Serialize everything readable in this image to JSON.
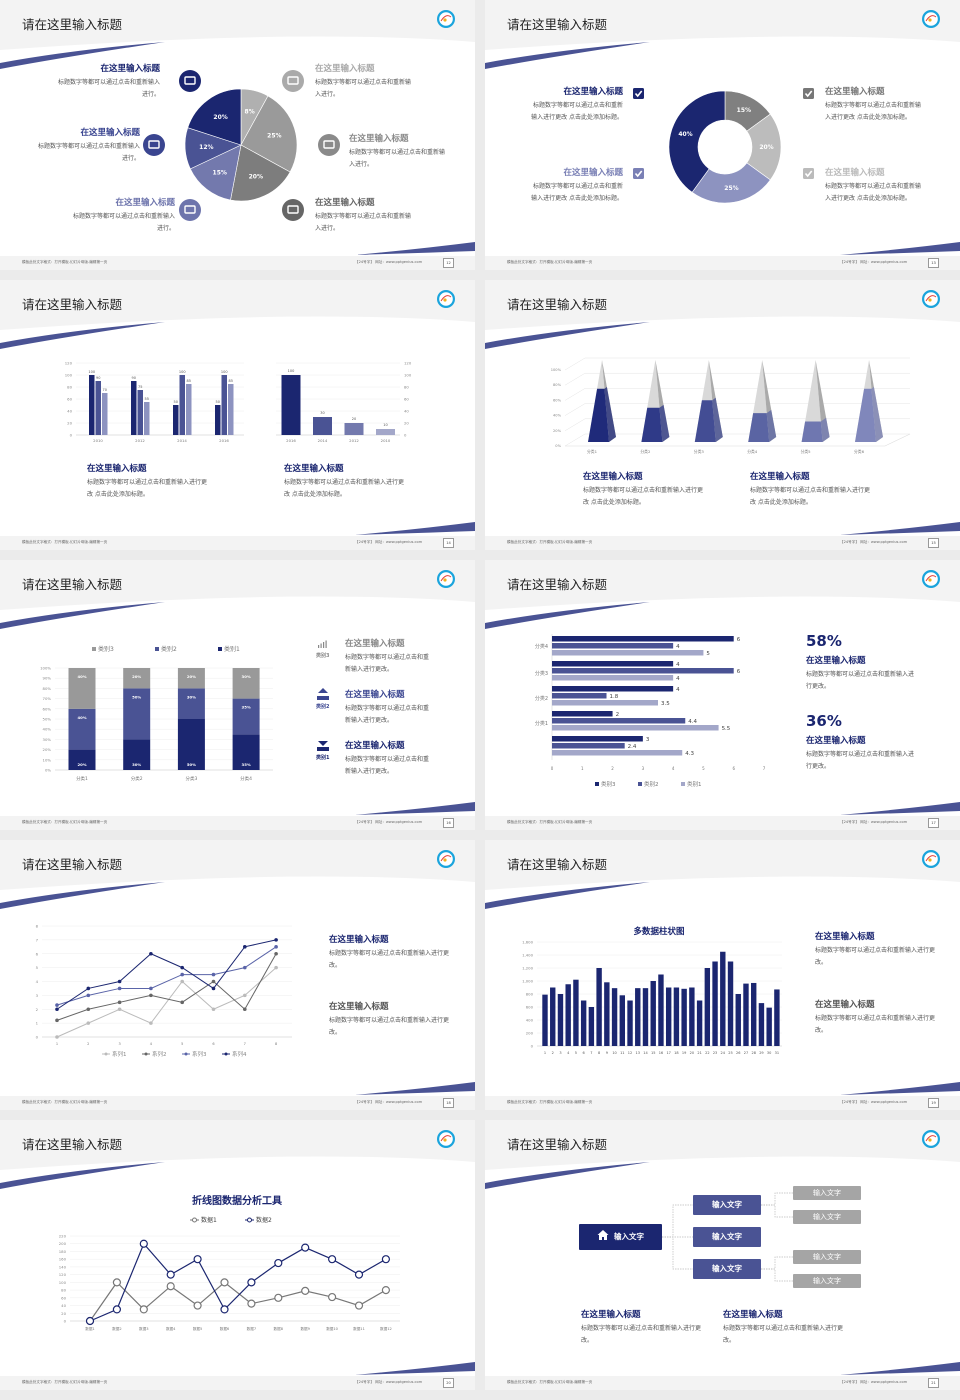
{
  "footer": {
    "left": "模板此处文字格式：打开模板-幻灯片母版-编辑第一页",
    "right": "【24号字】  网址：www.pptgenius.com"
  },
  "slides": [
    {
      "title": "请在这里输入标题",
      "page": "12"
    },
    {
      "title": "请在这里输入标题",
      "page": "13"
    },
    {
      "title": "请在这里输入标题",
      "page": "14"
    },
    {
      "title": "请在这里输入标题",
      "page": "15"
    },
    {
      "title": "请在这里输入标题",
      "page": "16"
    },
    {
      "title": "请在这里输入标题",
      "page": "17"
    },
    {
      "title": "请在这里输入标题",
      "page": "18"
    },
    {
      "title": "请在这里输入标题",
      "page": "19"
    },
    {
      "title": "请在这里输入标题",
      "page": "20"
    },
    {
      "title": "请在这里输入标题",
      "page": "21"
    }
  ],
  "colors": {
    "navy": "#1b2670",
    "mid": "#4a5394",
    "light": "#8d93c0",
    "gray": "#808080"
  },
  "s1": {
    "items": [
      {
        "heading": "在这里输入标题",
        "body": "标题数字等都可以通过点击和重新输入进行。",
        "icon": "monitor-icon",
        "color": "#1b2670"
      },
      {
        "heading": "在这里输入标题",
        "body": "标题数字等都可以通过点击和重新输入进行。",
        "icon": "car-icon",
        "color": "#3a4590"
      },
      {
        "heading": "在这里输入标题",
        "body": "标题数字等都可以通过点击和重新输入进行。",
        "icon": "book-icon",
        "color": "#6d74ac"
      },
      {
        "heading": "在这里输入标题",
        "body": "标题数字等都可以通过点击和重新输入进行。",
        "icon": "phone-icon",
        "color": "#aaaaaa"
      },
      {
        "heading": "在这里输入标题",
        "body": "标题数字等都可以通过点击和重新输入进行。",
        "icon": "binoculars-icon",
        "color": "#8a8a8a"
      },
      {
        "heading": "在这里输入标题",
        "body": "标题数字等都可以通过点击和重新输入进行。",
        "icon": "bicycle-icon",
        "color": "#666666"
      }
    ]
  },
  "s2": {
    "items": [
      {
        "heading": "在这里输入标题",
        "body": "标题数字等都可以通过点击和重新输入进行更改 点击此处添加标题。",
        "color": "#1b2670"
      },
      {
        "heading": "在这里输入标题",
        "body": "标题数字等都可以通过点击和重新输入进行更改 点击此处添加标题。",
        "color": "#7a80b5"
      },
      {
        "heading": "在这里输入标题",
        "body": "标题数字等都可以通过点击和重新输入进行更改 点击此处添加标题。",
        "color": "#777777"
      },
      {
        "heading": "在这里输入标题",
        "body": "标题数字等都可以通过点击和重新输入进行更改 点击此处添加标题。",
        "color": "#bbbbbb"
      }
    ]
  },
  "s3": {
    "blocks": [
      {
        "heading": "在这里输入标题",
        "body": "标题数字等都可以通过点击和重新输入进行更改 点击此处添加标题。"
      },
      {
        "heading": "在这里输入标题",
        "body": "标题数字等都可以通过点击和重新输入进行更改 点击此处添加标题。"
      }
    ]
  },
  "s4": {
    "blocks": [
      {
        "heading": "在这里输入标题",
        "body": "标题数字等都可以通过点击和重新输入进行更改 点击此处添加标题。"
      },
      {
        "heading": "在这里输入标题",
        "body": "标题数字等都可以通过点击和重新输入进行更改 点击此处添加标题。"
      }
    ]
  },
  "s5": {
    "items": [
      {
        "icon_label": "类别3",
        "icon": "bar-chart-icon",
        "heading": "在这里输入标题",
        "body": "标题数字等都可以通过点击和重新输入进行更改。",
        "color": "#888888"
      },
      {
        "icon_label": "类别2",
        "icon": "upload-icon",
        "heading": "在这里输入标题",
        "body": "标题数字等都可以通过点击和重新输入进行更改。",
        "color": "#3a4590"
      },
      {
        "icon_label": "类别1",
        "icon": "download-icon",
        "heading": "在这里输入标题",
        "body": "标题数字等都可以通过点击和重新输入进行更改。",
        "color": "#1b2670"
      }
    ]
  },
  "s6": {
    "stats": [
      {
        "value": "58%",
        "heading": "在这里输入标题",
        "body": "标题数字等都可以通过点击和重新输入进行更改。"
      },
      {
        "value": "36%",
        "heading": "在这里输入标题",
        "body": "标题数字等都可以通过点击和重新输入进行更改。"
      }
    ]
  },
  "s7": {
    "blocks": [
      {
        "heading": "在这里输入标题",
        "body": "标题数字等都可以通过点击和重新输入进行更改。",
        "color": "#1b2670"
      },
      {
        "heading": "在这里输入标题",
        "body": "标题数字等都可以通过点击和重新输入进行更改。",
        "color": "#555555"
      }
    ]
  },
  "s8": {
    "blocks": [
      {
        "heading": "在这里输入标题",
        "body": "标题数字等都可以通过点击和重新输入进行更改。",
        "color": "#1b2670"
      },
      {
        "heading": "在这里输入标题",
        "body": "标题数字等都可以通过点击和重新输入进行更改。",
        "color": "#555555"
      }
    ]
  },
  "s10": {
    "root": "输入文字",
    "root_icon": "home-icon",
    "mid": [
      "输入文字",
      "输入文字",
      "输入文字"
    ],
    "leaves": [
      "输入文字",
      "输入文字",
      "输入文字",
      "输入文字"
    ],
    "blocks": [
      {
        "heading": "在这里输入标题",
        "body": "标题数字等都可以通过点击和重新输入进行更改。"
      },
      {
        "heading": "在这里输入标题",
        "body": "标题数字等都可以通过点击和重新输入进行更改。"
      }
    ]
  },
  "chart_data": [
    {
      "type": "pie",
      "labels": [
        "8%",
        "25%",
        "20%",
        "15%",
        "12%",
        "20%"
      ],
      "values": [
        8,
        25,
        20,
        15,
        12,
        20
      ],
      "colors": [
        "#b0b0b0",
        "#9a9a9a",
        "#7d7d7d",
        "#7379ad",
        "#4a5394",
        "#1b2670"
      ]
    },
    {
      "type": "pie",
      "donut": true,
      "labels": [
        "15%",
        "20%",
        "25%",
        "40%"
      ],
      "values": [
        15,
        20,
        25,
        40
      ],
      "colors": [
        "#808080",
        "#bcbcbc",
        "#8d93c0",
        "#1b2670"
      ]
    },
    {
      "type": "bar",
      "categories": [
        "2010",
        "2012",
        "2014",
        "2016"
      ],
      "series": [
        {
          "values": [
            100,
            90,
            50,
            50
          ],
          "color": "#1b2670"
        },
        {
          "values": [
            90,
            75,
            100,
            100
          ],
          "color": "#4a5394"
        },
        {
          "values": [
            70,
            55,
            85,
            85
          ],
          "color": "#8d93c0"
        }
      ],
      "ylim": [
        0,
        120
      ],
      "yticks": [
        "0",
        "20",
        "40",
        "60",
        "80",
        "100",
        "120"
      ],
      "grid": true
    },
    {
      "type": "bar",
      "categories": [
        "2016",
        "2014",
        "2012",
        "2010"
      ],
      "values": [
        100,
        30,
        20,
        10
      ],
      "colors": [
        "#1b2670",
        "#4a5394",
        "#7379ad",
        "#a3a7c9"
      ],
      "ylim": [
        0,
        120
      ],
      "yticks": [
        "0",
        "20",
        "40",
        "60",
        "80",
        "100",
        "120"
      ],
      "y_axis_side": "right",
      "grid": true
    },
    {
      "type": "bar",
      "style": "3d-pyramid",
      "categories": [
        "分类1",
        "分类2",
        "分类3",
        "分类4",
        "分类5",
        "分类6"
      ],
      "values": [
        70,
        45,
        55,
        38,
        27,
        70
      ],
      "colors": [
        "#1f2a7a",
        "#2f3a88",
        "#434d94",
        "#5a64a3",
        "#6f77b0",
        "#8087bb"
      ],
      "ylim": [
        0,
        100
      ],
      "yticks": [
        "0%",
        "20%",
        "40%",
        "60%",
        "80%",
        "100%"
      ],
      "grid": true
    },
    {
      "type": "bar",
      "stacked": true,
      "categories": [
        "分类1",
        "分类2",
        "分类3",
        "分类4"
      ],
      "series": [
        {
          "name": "类别1",
          "values": [
            20,
            30,
            50,
            35
          ],
          "color": "#1b2670"
        },
        {
          "name": "类别2",
          "values": [
            40,
            50,
            30,
            35
          ],
          "color": "#4a5394"
        },
        {
          "name": "类别3",
          "values": [
            40,
            20,
            20,
            30
          ],
          "color": "#999999"
        }
      ],
      "data_labels": [
        [
          "20%",
          "30%",
          "50%",
          "35%"
        ],
        [
          "40%",
          "50%",
          "30%",
          "35%"
        ],
        [
          "40%",
          "20%",
          "20%",
          "30%"
        ]
      ],
      "legend_order": [
        "类别3",
        "类别2",
        "类别1"
      ],
      "ylim": [
        0,
        100
      ],
      "yticks": [
        "0%",
        "10%",
        "20%",
        "30%",
        "40%",
        "50%",
        "60%",
        "70%",
        "80%",
        "90%",
        "100%"
      ],
      "legend": "top",
      "grid": true
    },
    {
      "type": "bar",
      "orientation": "horizontal",
      "categories": [
        "分类4",
        "分类3",
        "分类2",
        "分类1",
        ""
      ],
      "series": [
        {
          "name": "类别3",
          "values": [
            6,
            4,
            4,
            2,
            3
          ],
          "color": "#1b2670"
        },
        {
          "name": "类别2",
          "values": [
            4,
            6,
            1.8,
            4.4,
            2.4
          ],
          "color": "#4a5394"
        },
        {
          "name": "类别1",
          "values": [
            5,
            4,
            3.5,
            5.5,
            4.3
          ],
          "color": "#a3a7c9"
        }
      ],
      "xlim": [
        0,
        7
      ],
      "xticks": [
        "0",
        "1",
        "2",
        "3",
        "4",
        "5",
        "6",
        "7"
      ],
      "legend": "bottom"
    },
    {
      "type": "line",
      "x": [
        "1",
        "2",
        "3",
        "4",
        "5",
        "6",
        "7",
        "8"
      ],
      "series": [
        {
          "name": "系列1",
          "values": [
            0,
            1,
            2,
            1,
            4,
            2,
            3,
            5
          ],
          "color": "#bbbbbb"
        },
        {
          "name": "系列2",
          "values": [
            1.2,
            2,
            2.5,
            3,
            2.5,
            4,
            2,
            6
          ],
          "color": "#666666"
        },
        {
          "name": "系列3",
          "values": [
            2.3,
            3,
            3.5,
            3.5,
            4.5,
            4.5,
            5,
            6.5
          ],
          "color": "#5a64a8"
        },
        {
          "name": "系列4",
          "values": [
            2,
            3.5,
            4,
            6,
            5,
            3.5,
            6.5,
            7
          ],
          "color": "#1b2670"
        }
      ],
      "ylim": [
        0,
        8
      ],
      "yticks": [
        "0",
        "1",
        "2",
        "3",
        "4",
        "5",
        "6",
        "7",
        "8"
      ],
      "legend": "bottom",
      "grid": true
    },
    {
      "type": "bar",
      "title": "多数据柱状图",
      "categories": [
        "1",
        "2",
        "3",
        "4",
        "5",
        "6",
        "7",
        "8",
        "9",
        "10",
        "11",
        "12",
        "13",
        "14",
        "15",
        "16",
        "17",
        "18",
        "19",
        "20",
        "21",
        "22",
        "23",
        "24",
        "25",
        "26",
        "27",
        "28",
        "29",
        "30",
        "31"
      ],
      "values": [
        790,
        900,
        800,
        950,
        1020,
        700,
        600,
        1200,
        980,
        890,
        780,
        700,
        890,
        890,
        1000,
        1100,
        900,
        900,
        880,
        900,
        700,
        1200,
        1300,
        1450,
        1300,
        800,
        960,
        970,
        660,
        590,
        870
      ],
      "color": "#1b2670",
      "ylim": [
        0,
        1600
      ],
      "yticks": [
        "0",
        "200",
        "400",
        "600",
        "800",
        "1,000",
        "1,200",
        "1,400",
        "1,600"
      ],
      "grid": true
    },
    {
      "type": "line",
      "title": "折线图数据分析工具",
      "x": [
        "数据1",
        "数据2",
        "数据3",
        "数据4",
        "数据5",
        "数据6",
        "数据7",
        "数据8",
        "数据9",
        "数据10",
        "数据11",
        "数据12"
      ],
      "series": [
        {
          "name": "数据1",
          "values": [
            0,
            100,
            30,
            90,
            40,
            100,
            45,
            60,
            78,
            62,
            40,
            80
          ],
          "color": "#777777"
        },
        {
          "name": "数据2",
          "values": [
            0,
            30,
            200,
            120,
            160,
            30,
            100,
            150,
            190,
            160,
            120,
            160
          ],
          "color": "#1b2670"
        }
      ],
      "ylim": [
        0,
        220
      ],
      "yticks": [
        "0",
        "20",
        "40",
        "60",
        "80",
        "100",
        "120",
        "140",
        "160",
        "180",
        "200",
        "220"
      ],
      "legend": "top",
      "grid": true
    }
  ]
}
